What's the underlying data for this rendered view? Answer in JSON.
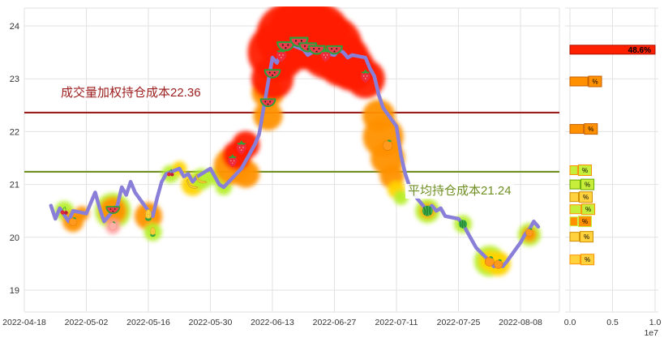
{
  "colors": {
    "background": "#ffffff",
    "grid": "#e2e2e2",
    "axis_text": "#333333",
    "price_line": "#8a7fd8",
    "blob_red": "#ff1e00",
    "blob_orange": "#ff9100",
    "blob_yellow": "#ffd300",
    "blob_chartreuse": "#b7ee2a",
    "blob_pink": "#ff9e9e"
  },
  "chart_data": [
    {
      "type": "line",
      "title": "",
      "xlabel": "",
      "ylabel": "",
      "grid": true,
      "x_ticks": [
        "2022-04-18",
        "2022-05-02",
        "2022-05-16",
        "2022-05-30",
        "2022-06-13",
        "2022-06-27",
        "2022-07-11",
        "2022-07-25",
        "2022-08-08"
      ],
      "y_ticks": [
        19,
        20,
        21,
        22,
        23,
        24
      ],
      "ylim": [
        18.6,
        24.34
      ],
      "series": [
        {
          "name": "price",
          "color": "#8a7fd8",
          "points": [
            [
              "2022-04-24",
              20.6
            ],
            [
              "2022-04-25",
              20.35
            ],
            [
              "2022-04-26",
              20.55
            ],
            [
              "2022-04-28",
              20.3
            ],
            [
              "2022-04-29",
              20.5
            ],
            [
              "2022-05-02",
              20.45
            ],
            [
              "2022-05-04",
              20.85
            ],
            [
              "2022-05-05",
              20.55
            ],
            [
              "2022-05-06",
              20.3
            ],
            [
              "2022-05-09",
              20.6
            ],
            [
              "2022-05-10",
              20.95
            ],
            [
              "2022-05-11",
              20.8
            ],
            [
              "2022-05-12",
              21.05
            ],
            [
              "2022-05-13",
              20.85
            ],
            [
              "2022-05-16",
              20.5
            ],
            [
              "2022-05-17",
              20.4
            ],
            [
              "2022-05-18",
              20.75
            ],
            [
              "2022-05-19",
              21.05
            ],
            [
              "2022-05-20",
              21.2
            ],
            [
              "2022-05-23",
              21.3
            ],
            [
              "2022-05-24",
              21.15
            ],
            [
              "2022-05-25",
              21.2
            ],
            [
              "2022-05-26",
              21.05
            ],
            [
              "2022-05-27",
              21.15
            ],
            [
              "2022-05-30",
              21.3
            ],
            [
              "2022-05-31",
              21.15
            ],
            [
              "2022-06-01",
              21.0
            ],
            [
              "2022-06-02",
              20.95
            ],
            [
              "2022-06-06",
              21.3
            ],
            [
              "2022-06-07",
              21.45
            ],
            [
              "2022-06-08",
              21.6
            ],
            [
              "2022-06-09",
              21.75
            ],
            [
              "2022-06-10",
              21.95
            ],
            [
              "2022-06-13",
              23.4
            ],
            [
              "2022-06-14",
              23.3
            ],
            [
              "2022-06-15",
              23.5
            ],
            [
              "2022-06-16",
              23.6
            ],
            [
              "2022-06-17",
              23.65
            ],
            [
              "2022-06-20",
              23.55
            ],
            [
              "2022-06-21",
              23.45
            ],
            [
              "2022-06-22",
              23.5
            ],
            [
              "2022-06-23",
              23.6
            ],
            [
              "2022-06-24",
              23.5
            ],
            [
              "2022-06-27",
              23.45
            ],
            [
              "2022-06-28",
              23.55
            ],
            [
              "2022-06-29",
              23.5
            ],
            [
              "2022-06-30",
              23.4
            ],
            [
              "2022-07-01",
              23.45
            ],
            [
              "2022-07-04",
              23.4
            ],
            [
              "2022-07-05",
              23.2
            ],
            [
              "2022-07-06",
              23.05
            ],
            [
              "2022-07-07",
              22.7
            ],
            [
              "2022-07-08",
              22.45
            ],
            [
              "2022-07-11",
              22.1
            ],
            [
              "2022-07-12",
              21.55
            ],
            [
              "2022-07-13",
              21.2
            ],
            [
              "2022-07-14",
              20.95
            ],
            [
              "2022-07-15",
              20.8
            ],
            [
              "2022-07-18",
              20.5
            ],
            [
              "2022-07-19",
              20.6
            ],
            [
              "2022-07-20",
              20.5
            ],
            [
              "2022-07-21",
              20.55
            ],
            [
              "2022-07-22",
              20.4
            ],
            [
              "2022-07-25",
              20.35
            ],
            [
              "2022-07-26",
              20.25
            ],
            [
              "2022-07-27",
              20.1
            ],
            [
              "2022-07-28",
              19.95
            ],
            [
              "2022-07-29",
              19.8
            ],
            [
              "2022-08-01",
              19.55
            ],
            [
              "2022-08-02",
              19.45
            ],
            [
              "2022-08-03",
              19.5
            ],
            [
              "2022-08-04",
              19.45
            ],
            [
              "2022-08-05",
              19.55
            ],
            [
              "2022-08-08",
              19.9
            ],
            [
              "2022-08-09",
              20.05
            ],
            [
              "2022-08-10",
              20.15
            ],
            [
              "2022-08-11",
              20.3
            ],
            [
              "2022-08-12",
              20.2
            ]
          ]
        }
      ],
      "reference_lines": [
        {
          "id": "vwap",
          "label": "成交量加权持仓成本22.36",
          "value": 22.36,
          "color": "#9b1c1c"
        },
        {
          "id": "avg",
          "label": "平均持仓成本21.24",
          "value": 21.24,
          "color": "#6f8f23"
        }
      ],
      "fruit_markers": [
        {
          "date": "2022-04-27",
          "price": 20.5,
          "fruit": "cherry",
          "size": 13
        },
        {
          "date": "2022-04-29",
          "price": 20.3,
          "fruit": "tangerine",
          "size": 13
        },
        {
          "date": "2022-05-08",
          "price": 20.52,
          "fruit": "watermelon-slice",
          "size": 19
        },
        {
          "date": "2022-05-08",
          "price": 20.22,
          "fruit": "peach",
          "size": 13
        },
        {
          "date": "2022-05-16",
          "price": 20.42,
          "fruit": "corn",
          "size": 17
        },
        {
          "date": "2022-05-17",
          "price": 20.1,
          "fruit": "corn",
          "size": 14
        },
        {
          "date": "2022-05-21",
          "price": 21.22,
          "fruit": "cherry",
          "size": 12
        },
        {
          "date": "2022-05-26",
          "price": 21.02,
          "fruit": "banana",
          "size": 17
        },
        {
          "date": "2022-05-28",
          "price": 21.12,
          "fruit": "banana",
          "size": 17
        },
        {
          "date": "2022-06-04",
          "price": 21.45,
          "fruit": "strawberry",
          "size": 19
        },
        {
          "date": "2022-06-06",
          "price": 21.7,
          "fruit": "strawberry",
          "size": 21
        },
        {
          "date": "2022-06-12",
          "price": 22.55,
          "fruit": "watermelon-slice",
          "size": 21
        },
        {
          "date": "2022-06-13",
          "price": 23.1,
          "fruit": "watermelon-slice",
          "size": 22
        },
        {
          "date": "2022-06-15",
          "price": 23.45,
          "fruit": "strawberry",
          "size": 21
        },
        {
          "date": "2022-06-16",
          "price": 23.62,
          "fruit": "watermelon-slice",
          "size": 24
        },
        {
          "date": "2022-06-19",
          "price": 23.7,
          "fruit": "watermelon-slice",
          "size": 25
        },
        {
          "date": "2022-06-21",
          "price": 23.6,
          "fruit": "watermelon-slice",
          "size": 24
        },
        {
          "date": "2022-06-23",
          "price": 23.55,
          "fruit": "watermelon-slice",
          "size": 23
        },
        {
          "date": "2022-06-25",
          "price": 23.45,
          "fruit": "strawberry",
          "size": 20
        },
        {
          "date": "2022-06-27",
          "price": 23.55,
          "fruit": "watermelon-slice",
          "size": 22
        },
        {
          "date": "2022-07-04",
          "price": 23.05,
          "fruit": "strawberry",
          "size": 20
        },
        {
          "date": "2022-07-09",
          "price": 21.75,
          "fruit": "tangerine",
          "size": 16
        },
        {
          "date": "2022-07-18",
          "price": 20.5,
          "fruit": "watermelon-whole",
          "size": 16
        },
        {
          "date": "2022-07-26",
          "price": 20.25,
          "fruit": "watermelon-whole",
          "size": 13
        },
        {
          "date": "2022-08-01",
          "price": 19.55,
          "fruit": "tangerine",
          "size": 15
        },
        {
          "date": "2022-08-03",
          "price": 19.5,
          "fruit": "tangerine",
          "size": 14
        },
        {
          "date": "2022-08-10",
          "price": 20.1,
          "fruit": "tangerine",
          "size": 12
        }
      ],
      "volume_blobs": [
        {
          "date": "2022-04-27",
          "price": 20.5,
          "r": 12,
          "color": "chartreuse"
        },
        {
          "date": "2022-04-29",
          "price": 20.3,
          "r": 13,
          "color": "orange"
        },
        {
          "date": "2022-05-01",
          "price": 20.45,
          "r": 9,
          "color": "orange"
        },
        {
          "date": "2022-05-08",
          "price": 20.5,
          "r": 22,
          "color": "chartreuse"
        },
        {
          "date": "2022-05-08",
          "price": 20.5,
          "r": 17,
          "color": "orange"
        },
        {
          "date": "2022-05-08",
          "price": 20.2,
          "r": 9,
          "color": "pink"
        },
        {
          "date": "2022-05-16",
          "price": 20.4,
          "r": 17,
          "color": "orange"
        },
        {
          "date": "2022-05-17",
          "price": 20.1,
          "r": 11,
          "color": "chartreuse"
        },
        {
          "date": "2022-05-21",
          "price": 21.2,
          "r": 11,
          "color": "chartreuse"
        },
        {
          "date": "2022-05-23",
          "price": 21.3,
          "r": 9,
          "color": "yellow"
        },
        {
          "date": "2022-05-26",
          "price": 21.0,
          "r": 14,
          "color": "yellow"
        },
        {
          "date": "2022-05-28",
          "price": 21.1,
          "r": 13,
          "color": "chartreuse"
        },
        {
          "date": "2022-05-31",
          "price": 21.15,
          "r": 10,
          "color": "chartreuse"
        },
        {
          "date": "2022-06-02",
          "price": 20.95,
          "r": 10,
          "color": "chartreuse"
        },
        {
          "date": "2022-06-04",
          "price": 21.35,
          "r": 23,
          "color": "orange"
        },
        {
          "date": "2022-06-07",
          "price": 21.2,
          "r": 17,
          "color": "orange"
        },
        {
          "date": "2022-06-05",
          "price": 21.55,
          "r": 18,
          "color": "red"
        },
        {
          "date": "2022-06-07",
          "price": 21.75,
          "r": 17,
          "color": "red"
        },
        {
          "date": "2022-06-12",
          "price": 22.3,
          "r": 18,
          "color": "orange"
        },
        {
          "date": "2022-06-12",
          "price": 22.75,
          "r": 20,
          "color": "orange"
        },
        {
          "date": "2022-06-13",
          "price": 23.0,
          "r": 26,
          "color": "red"
        },
        {
          "date": "2022-06-14",
          "price": 23.5,
          "r": 36,
          "color": "red"
        },
        {
          "date": "2022-06-17",
          "price": 23.8,
          "r": 42,
          "color": "red"
        },
        {
          "date": "2022-06-20",
          "price": 23.85,
          "r": 44,
          "color": "red"
        },
        {
          "date": "2022-06-23",
          "price": 23.8,
          "r": 42,
          "color": "red"
        },
        {
          "date": "2022-06-26",
          "price": 23.6,
          "r": 40,
          "color": "red"
        },
        {
          "date": "2022-06-29",
          "price": 23.35,
          "r": 33,
          "color": "red"
        },
        {
          "date": "2022-07-01",
          "price": 23.2,
          "r": 28,
          "color": "red"
        },
        {
          "date": "2022-07-04",
          "price": 23.0,
          "r": 24,
          "color": "red"
        },
        {
          "date": "2022-07-07",
          "price": 22.3,
          "r": 20,
          "color": "orange"
        },
        {
          "date": "2022-07-08",
          "price": 21.9,
          "r": 25,
          "color": "orange"
        },
        {
          "date": "2022-07-09",
          "price": 21.5,
          "r": 21,
          "color": "orange"
        },
        {
          "date": "2022-07-10",
          "price": 21.15,
          "r": 15,
          "color": "orange"
        },
        {
          "date": "2022-07-11",
          "price": 20.9,
          "r": 11,
          "color": "yellow"
        },
        {
          "date": "2022-07-12",
          "price": 20.75,
          "r": 9,
          "color": "chartreuse"
        },
        {
          "date": "2022-07-18",
          "price": 20.5,
          "r": 15,
          "color": "chartreuse"
        },
        {
          "date": "2022-07-18",
          "price": 20.5,
          "r": 9,
          "color": "orange"
        },
        {
          "date": "2022-07-26",
          "price": 20.25,
          "r": 11,
          "color": "chartreuse"
        },
        {
          "date": "2022-08-01",
          "price": 19.55,
          "r": 19,
          "color": "chartreuse"
        },
        {
          "date": "2022-08-01",
          "price": 19.55,
          "r": 13,
          "color": "yellow"
        },
        {
          "date": "2022-08-03",
          "price": 19.5,
          "r": 15,
          "color": "yellow"
        },
        {
          "date": "2022-08-10",
          "price": 20.05,
          "r": 14,
          "color": "chartreuse"
        },
        {
          "date": "2022-08-10",
          "price": 20.05,
          "r": 9,
          "color": "orange"
        }
      ]
    },
    {
      "type": "bar-horizontal",
      "title": "",
      "x_ticks": [
        "0.0",
        "0.5",
        "1.0"
      ],
      "x_tick_values": [
        0,
        5000000,
        10000000
      ],
      "scale_label": "1e7",
      "xlim": [
        0,
        10000000
      ],
      "bars": [
        {
          "price": 23.55,
          "value": 10000000,
          "fill": "#ff2000",
          "border": "#aa1000",
          "label": "48.6%"
        },
        {
          "price": 22.95,
          "value": 2100000,
          "fill": "#ff9100",
          "border": "#c45f00",
          "label": "%"
        },
        {
          "price": 22.05,
          "value": 1600000,
          "fill": "#ff9100",
          "border": "#c45f00",
          "label": "%"
        },
        {
          "price": 21.27,
          "value": 900000,
          "fill": "#c6ee3a",
          "border": "#ff9100",
          "label": "%"
        },
        {
          "price": 21.0,
          "value": 1200000,
          "fill": "#c6ee3a",
          "border": "#69a800",
          "label": "%"
        },
        {
          "price": 20.76,
          "value": 1000000,
          "fill": "#ffd23e",
          "border": "#d09000",
          "label": "%"
        },
        {
          "price": 20.53,
          "value": 1300000,
          "fill": "#c6ee3a",
          "border": "#ff9100",
          "label": "%"
        },
        {
          "price": 20.3,
          "value": 900000,
          "fill": "#ff9100",
          "border": "#c6ee3a",
          "label": "%"
        },
        {
          "price": 20.01,
          "value": 1100000,
          "fill": "#ffd23e",
          "border": "#d09000",
          "label": "%"
        },
        {
          "price": 19.58,
          "value": 1200000,
          "fill": "#ffd23e",
          "border": "#ff9100",
          "label": "%"
        }
      ]
    }
  ]
}
